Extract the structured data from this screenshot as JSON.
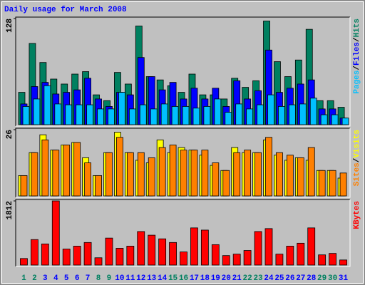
{
  "chart_data": [
    {
      "type": "bar",
      "title": "Daily usage for March 2008",
      "ylim": [
        0,
        128
      ],
      "yticks": [
        128
      ],
      "legend_separator": "/",
      "series": [
        {
          "name": "Hits",
          "color": "#008060",
          "values": [
            39,
            98,
            75,
            55,
            49,
            61,
            64,
            36,
            29,
            63,
            49,
            119,
            58,
            54,
            47,
            39,
            61,
            36,
            36,
            31,
            56,
            45,
            53,
            125,
            76,
            58,
            78,
            115,
            29,
            29,
            21
          ]
        },
        {
          "name": "Files",
          "color": "#0000ff",
          "values": [
            25,
            46,
            51,
            37,
            39,
            42,
            56,
            31,
            22,
            39,
            36,
            81,
            58,
            42,
            51,
            31,
            44,
            31,
            44,
            22,
            53,
            31,
            41,
            90,
            39,
            44,
            49,
            54,
            19,
            19,
            8
          ]
        },
        {
          "name": "Pages",
          "color": "#00c0ff",
          "values": [
            22,
            31,
            47,
            25,
            24,
            24,
            24,
            19,
            19,
            39,
            19,
            24,
            19,
            25,
            22,
            22,
            20,
            22,
            31,
            15,
            25,
            19,
            24,
            36,
            22,
            24,
            25,
            32,
            12,
            12,
            8
          ]
        }
      ]
    },
    {
      "type": "bar",
      "ylim": [
        0,
        26
      ],
      "yticks": [
        26
      ],
      "legend_separator": "/",
      "series": [
        {
          "name": "Visits",
          "color": "#ffff00",
          "values": [
            8,
            17,
            24,
            18,
            20,
            21,
            15,
            8,
            17,
            25,
            17,
            14,
            13,
            22,
            17,
            19,
            18,
            16,
            12,
            10,
            19,
            17,
            17,
            22,
            16,
            14,
            15,
            14,
            10,
            10,
            7
          ]
        },
        {
          "name": "Sites",
          "color": "#ff8000",
          "values": [
            8,
            17,
            22,
            18,
            20,
            21,
            13,
            8,
            17,
            23,
            17,
            17,
            15,
            19,
            20,
            18,
            18,
            18,
            13,
            10,
            17,
            18,
            17,
            23,
            17,
            16,
            15,
            19,
            10,
            10,
            9
          ]
        }
      ]
    },
    {
      "type": "bar",
      "ylim": [
        0,
        1812
      ],
      "yticks": [
        1812
      ],
      "series": [
        {
          "name": "KBytes",
          "color": "#ff0000",
          "values": [
            185,
            720,
            597,
            1812,
            453,
            535,
            638,
            206,
            762,
            474,
            535,
            947,
            844,
            741,
            638,
            371,
            1050,
            988,
            576,
            268,
            309,
            412,
            947,
            1030,
            309,
            535,
            617,
            1050,
            288,
            329,
            144
          ]
        }
      ],
      "categories": [
        "1",
        "2",
        "3",
        "4",
        "5",
        "6",
        "7",
        "8",
        "9",
        "10",
        "11",
        "12",
        "13",
        "14",
        "15",
        "16",
        "17",
        "18",
        "19",
        "20",
        "21",
        "22",
        "23",
        "24",
        "25",
        "26",
        "27",
        "28",
        "29",
        "30",
        "31"
      ],
      "category_colors": [
        "#008060",
        "#008060",
        "#0000ff",
        "#0000ff",
        "#0000ff",
        "#0000ff",
        "#0000ff",
        "#008060",
        "#008060",
        "#0000ff",
        "#0000ff",
        "#0000ff",
        "#0000ff",
        "#0000ff",
        "#008060",
        "#008060",
        "#0000ff",
        "#0000ff",
        "#0000ff",
        "#0000ff",
        "#0000ff",
        "#008060",
        "#008060",
        "#0000ff",
        "#0000ff",
        "#0000ff",
        "#0000ff",
        "#0000ff",
        "#008060",
        "#008060",
        "#0000ff"
      ]
    }
  ]
}
